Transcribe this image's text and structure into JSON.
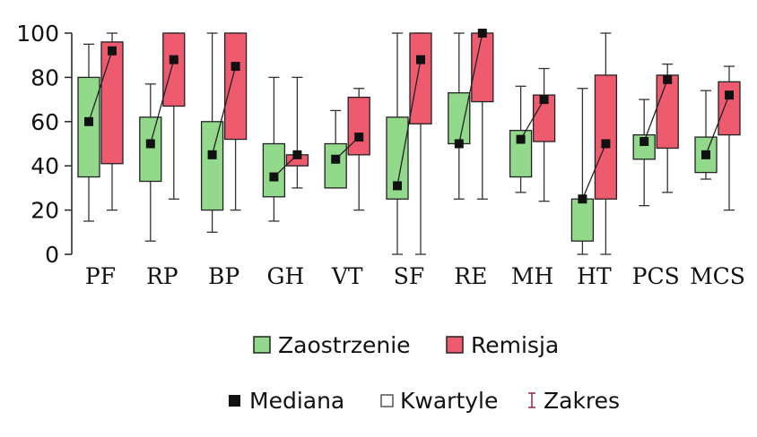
{
  "chart_data": {
    "type": "box",
    "categories": [
      "PF",
      "RP",
      "BP",
      "GH",
      "VT",
      "SF",
      "RE",
      "MH",
      "HT",
      "PCS",
      "MCS"
    ],
    "ylim": [
      0,
      100
    ],
    "yticks": [
      0,
      20,
      40,
      60,
      80,
      100
    ],
    "series": [
      {
        "name": "Zaostrzenie",
        "color": "#92d98c",
        "min": [
          15,
          6,
          10,
          15,
          30,
          0,
          25,
          28,
          0,
          22,
          34
        ],
        "q1": [
          35,
          33,
          20,
          26,
          30,
          25,
          50,
          35,
          6,
          43,
          37
        ],
        "median": [
          60,
          50,
          45,
          35,
          43,
          31,
          50,
          52,
          25,
          51,
          45
        ],
        "q3": [
          80,
          62,
          60,
          50,
          50,
          62,
          73,
          56,
          25,
          54,
          53
        ],
        "max": [
          95,
          77,
          100,
          80,
          65,
          100,
          100,
          76,
          75,
          70,
          74
        ]
      },
      {
        "name": "Remisja",
        "color": "#ee5a6e",
        "min": [
          20,
          25,
          20,
          30,
          20,
          0,
          25,
          24,
          0,
          28,
          20
        ],
        "q1": [
          41,
          67,
          52,
          40,
          45,
          59,
          69,
          51,
          25,
          48,
          54
        ],
        "median": [
          92,
          88,
          85,
          45,
          53,
          88,
          100,
          70,
          50,
          79,
          72
        ],
        "q3": [
          96,
          100,
          100,
          45,
          71,
          100,
          100,
          72,
          81,
          81,
          78
        ],
        "max": [
          100,
          100,
          100,
          80,
          75,
          100,
          100,
          84,
          100,
          86,
          85
        ]
      }
    ],
    "legend": {
      "series": [
        "Zaostrzenie",
        "Remisja"
      ],
      "markers": [
        "Mediana",
        "Kwartyle",
        "Zakres"
      ]
    }
  }
}
